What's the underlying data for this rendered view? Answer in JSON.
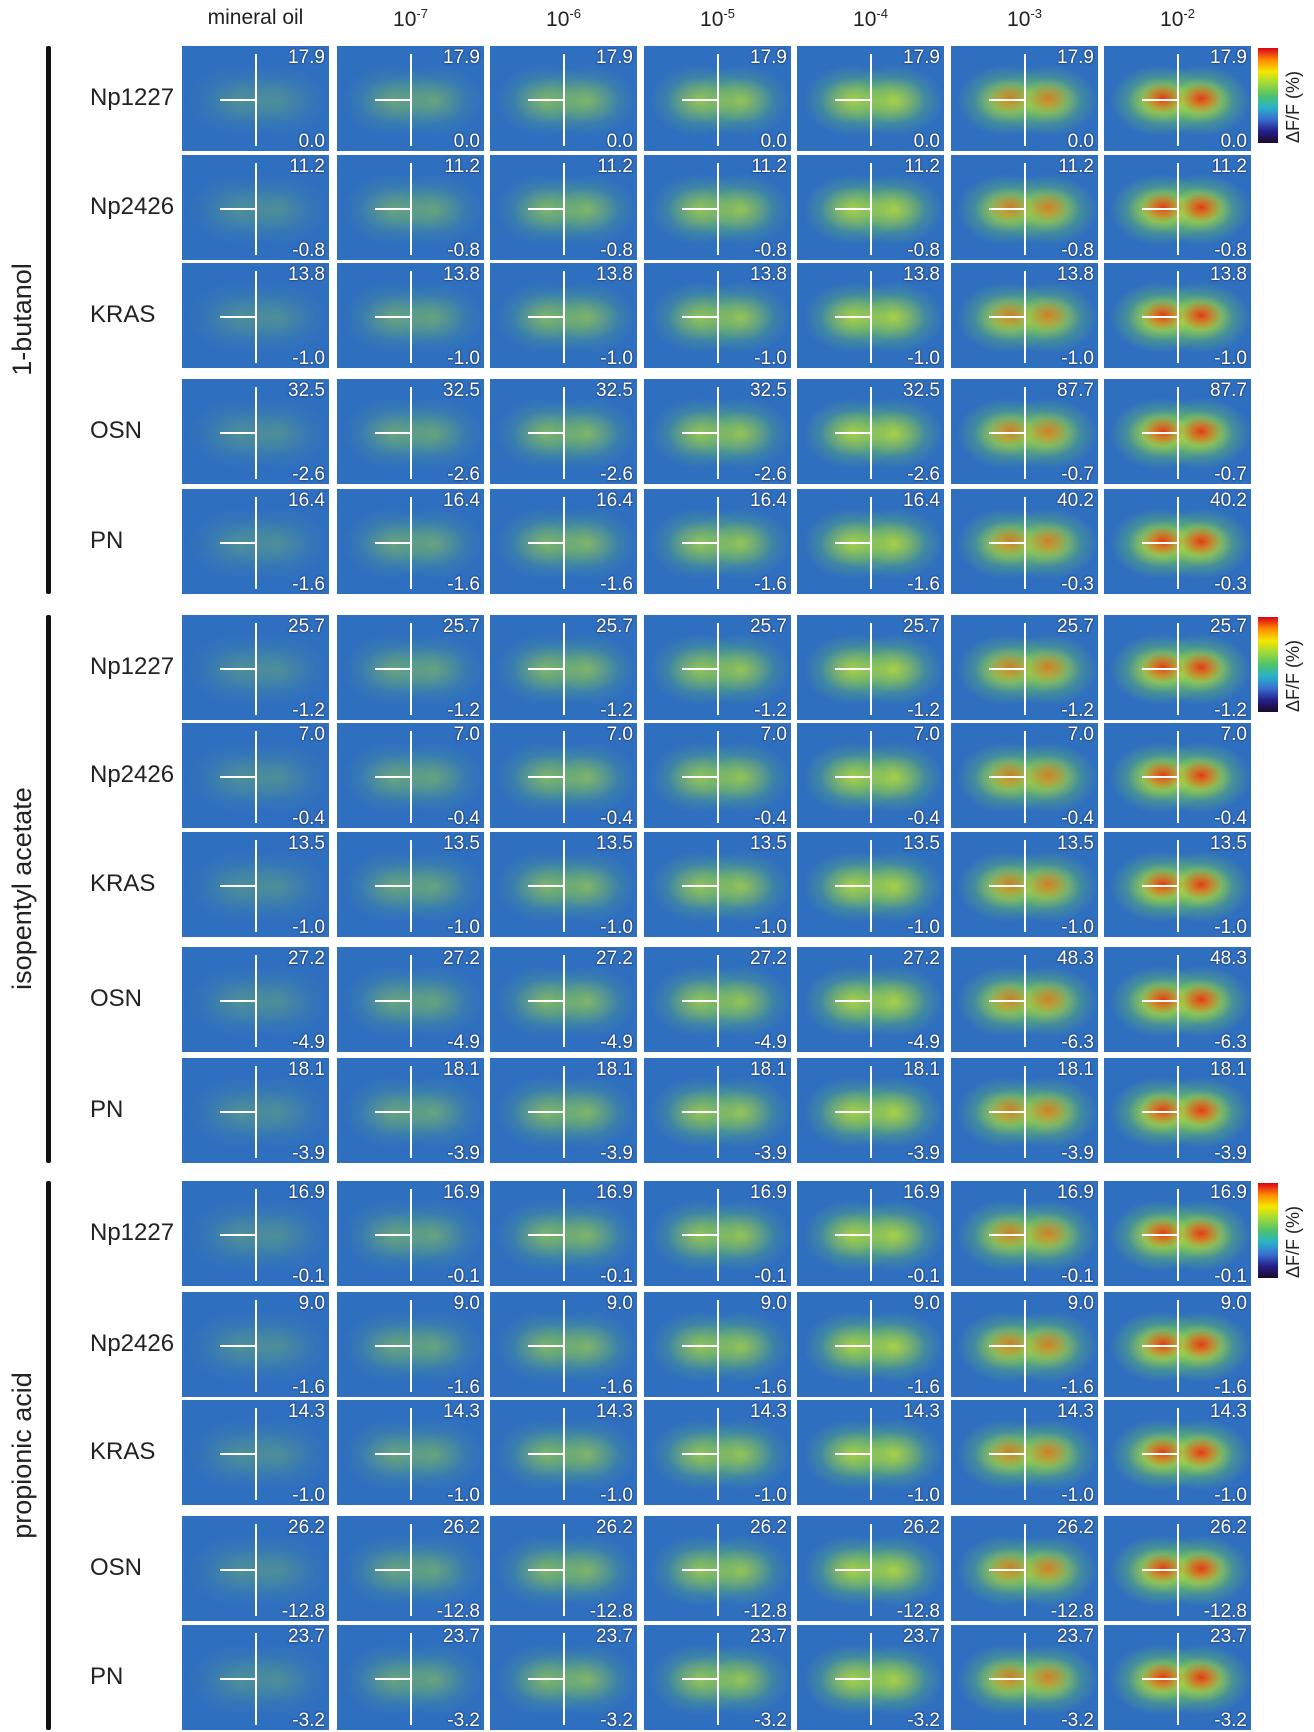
{
  "columns": [
    {
      "text": "mineral oil"
    },
    {
      "base": "10",
      "exp": "-7"
    },
    {
      "base": "10",
      "exp": "-6"
    },
    {
      "base": "10",
      "exp": "-5"
    },
    {
      "base": "10",
      "exp": "-4"
    },
    {
      "base": "10",
      "exp": "-3"
    },
    {
      "base": "10",
      "exp": "-2"
    }
  ],
  "groups": [
    {
      "odor": "1-butanol",
      "colorbar_label": "ΔF/F (%)",
      "rows": [
        {
          "label": "Np1227",
          "max": [
            "17.9",
            "17.9",
            "17.9",
            "17.9",
            "17.9",
            "17.9",
            "17.9"
          ],
          "min": [
            "0.0",
            "0.0",
            "0.0",
            "0.0",
            "0.0",
            "0.0",
            "0.0"
          ]
        },
        {
          "label": "Np2426",
          "max": [
            "11.2",
            "11.2",
            "11.2",
            "11.2",
            "11.2",
            "11.2",
            "11.2"
          ],
          "min": [
            "-0.8",
            "-0.8",
            "-0.8",
            "-0.8",
            "-0.8",
            "-0.8",
            "-0.8"
          ]
        },
        {
          "label": "KRAS",
          "max": [
            "13.8",
            "13.8",
            "13.8",
            "13.8",
            "13.8",
            "13.8",
            "13.8"
          ],
          "min": [
            "-1.0",
            "-1.0",
            "-1.0",
            "-1.0",
            "-1.0",
            "-1.0",
            "-1.0"
          ]
        },
        {
          "label": "OSN",
          "max": [
            "32.5",
            "32.5",
            "32.5",
            "32.5",
            "32.5",
            "87.7",
            "87.7"
          ],
          "min": [
            "-2.6",
            "-2.6",
            "-2.6",
            "-2.6",
            "-2.6",
            "-0.7",
            "-0.7"
          ]
        },
        {
          "label": "PN",
          "max": [
            "16.4",
            "16.4",
            "16.4",
            "16.4",
            "16.4",
            "40.2",
            "40.2"
          ],
          "min": [
            "-1.6",
            "-1.6",
            "-1.6",
            "-1.6",
            "-1.6",
            "-0.3",
            "-0.3"
          ]
        }
      ]
    },
    {
      "odor": "isopentyl acetate",
      "colorbar_label": "ΔF/F (%)",
      "rows": [
        {
          "label": "Np1227",
          "max": [
            "25.7",
            "25.7",
            "25.7",
            "25.7",
            "25.7",
            "25.7",
            "25.7"
          ],
          "min": [
            "-1.2",
            "-1.2",
            "-1.2",
            "-1.2",
            "-1.2",
            "-1.2",
            "-1.2"
          ]
        },
        {
          "label": "Np2426",
          "max": [
            "7.0",
            "7.0",
            "7.0",
            "7.0",
            "7.0",
            "7.0",
            "7.0"
          ],
          "min": [
            "-0.4",
            "-0.4",
            "-0.4",
            "-0.4",
            "-0.4",
            "-0.4",
            "-0.4"
          ]
        },
        {
          "label": "KRAS",
          "max": [
            "13.5",
            "13.5",
            "13.5",
            "13.5",
            "13.5",
            "13.5",
            "13.5"
          ],
          "min": [
            "-1.0",
            "-1.0",
            "-1.0",
            "-1.0",
            "-1.0",
            "-1.0",
            "-1.0"
          ]
        },
        {
          "label": "OSN",
          "max": [
            "27.2",
            "27.2",
            "27.2",
            "27.2",
            "27.2",
            "48.3",
            "48.3"
          ],
          "min": [
            "-4.9",
            "-4.9",
            "-4.9",
            "-4.9",
            "-4.9",
            "-6.3",
            "-6.3"
          ]
        },
        {
          "label": "PN",
          "max": [
            "18.1",
            "18.1",
            "18.1",
            "18.1",
            "18.1",
            "18.1",
            "18.1"
          ],
          "min": [
            "-3.9",
            "-3.9",
            "-3.9",
            "-3.9",
            "-3.9",
            "-3.9",
            "-3.9"
          ]
        }
      ]
    },
    {
      "odor": "propionic acid",
      "colorbar_label": "ΔF/F (%)",
      "rows": [
        {
          "label": "Np1227",
          "max": [
            "16.9",
            "16.9",
            "16.9",
            "16.9",
            "16.9",
            "16.9",
            "16.9"
          ],
          "min": [
            "-0.1",
            "-0.1",
            "-0.1",
            "-0.1",
            "-0.1",
            "-0.1",
            "-0.1"
          ]
        },
        {
          "label": "Np2426",
          "max": [
            "9.0",
            "9.0",
            "9.0",
            "9.0",
            "9.0",
            "9.0",
            "9.0"
          ],
          "min": [
            "-1.6",
            "-1.6",
            "-1.6",
            "-1.6",
            "-1.6",
            "-1.6",
            "-1.6"
          ]
        },
        {
          "label": "KRAS",
          "max": [
            "14.3",
            "14.3",
            "14.3",
            "14.3",
            "14.3",
            "14.3",
            "14.3"
          ],
          "min": [
            "-1.0",
            "-1.0",
            "-1.0",
            "-1.0",
            "-1.0",
            "-1.0",
            "-1.0"
          ]
        },
        {
          "label": "OSN",
          "max": [
            "26.2",
            "26.2",
            "26.2",
            "26.2",
            "26.2",
            "26.2",
            "26.2"
          ],
          "min": [
            "-12.8",
            "-12.8",
            "-12.8",
            "-12.8",
            "-12.8",
            "-12.8",
            "-12.8"
          ]
        },
        {
          "label": "PN",
          "max": [
            "23.7",
            "23.7",
            "23.7",
            "23.7",
            "23.7",
            "23.7",
            "23.7"
          ],
          "min": [
            "-3.2",
            "-3.2",
            "-3.2",
            "-3.2",
            "-3.2",
            "-3.2",
            "-3.2"
          ]
        }
      ]
    }
  ]
}
